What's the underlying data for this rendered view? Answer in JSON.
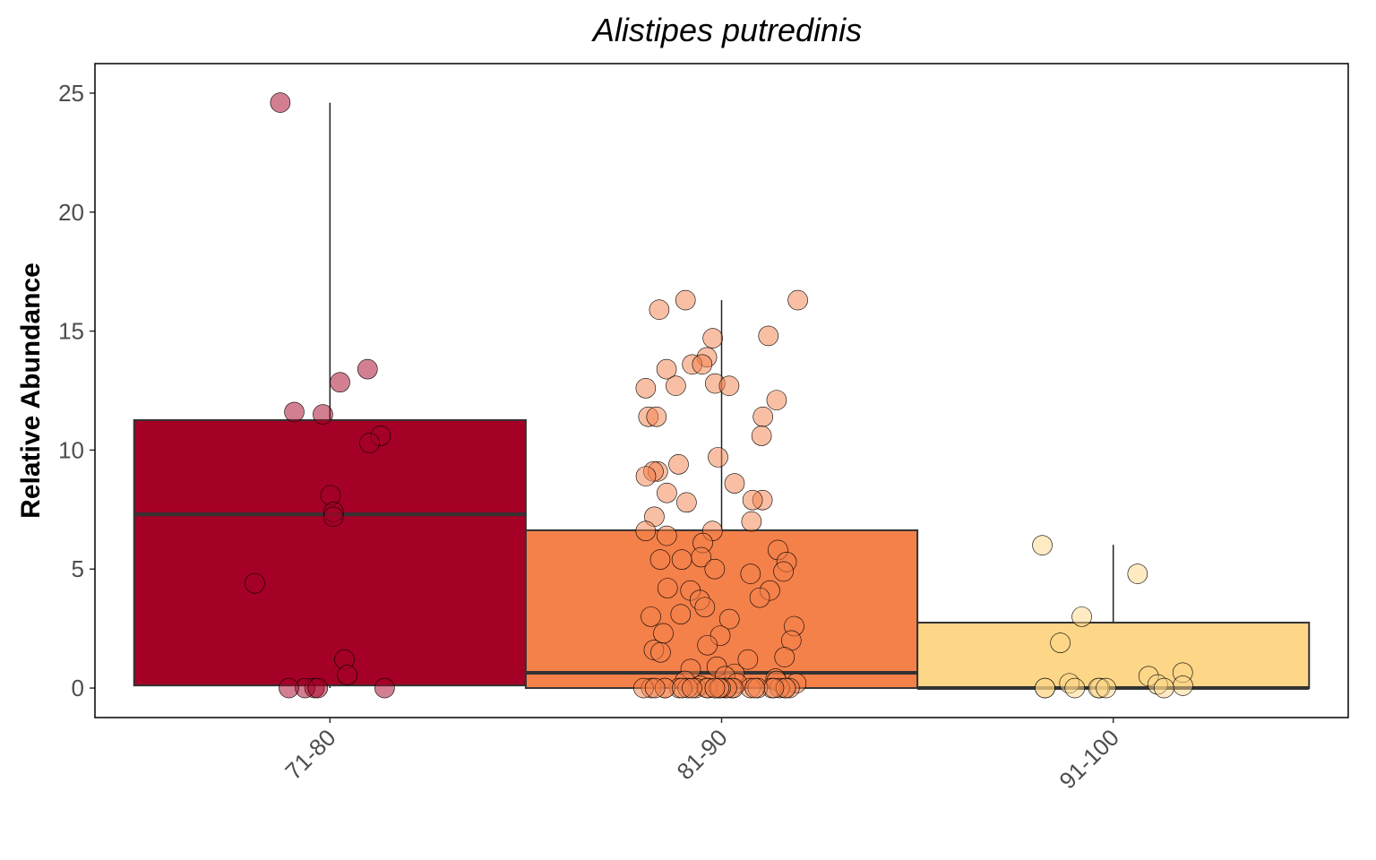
{
  "chart_data": {
    "type": "box",
    "title": "Alistipes putredinis",
    "y_label": "Relative Abundance",
    "categories": [
      "71-80",
      "81-90",
      "91-100"
    ],
    "ylim": [
      -1.24,
      26.24
    ],
    "yticks": [
      0,
      5,
      10,
      15,
      20,
      25
    ],
    "boxes": [
      {
        "color": "#a50026",
        "whisker_low": 0,
        "q1": 0.11,
        "median": 7.3,
        "q3": 11.26,
        "whisker_high": 24.6,
        "points": [
          24.6,
          13.4,
          12.85,
          11.5,
          11.6,
          10.6,
          10.3,
          8.1,
          7.4,
          7.2,
          4.4,
          1.2,
          0.55,
          0,
          0,
          0,
          0,
          0
        ]
      },
      {
        "color": "#f4804a",
        "whisker_low": 0,
        "q1": 0,
        "median": 0.64,
        "q3": 6.63,
        "whisker_high": 16.3,
        "points": [
          16.3,
          16.3,
          15.9,
          14.7,
          14.8,
          13.9,
          13.6,
          13.4,
          13.6,
          12.8,
          12.6,
          12.7,
          12.7,
          12.1,
          11.4,
          11.4,
          11.4,
          10.6,
          9.7,
          9.4,
          9.1,
          9.1,
          8.9,
          8.6,
          8.2,
          7.9,
          7.9,
          7.8,
          7.2,
          7.0,
          6.6,
          6.6,
          6.4,
          6.1,
          5.8,
          5.5,
          5.4,
          5.4,
          5.3,
          5.0,
          4.8,
          4.9,
          4.2,
          4.1,
          4.1,
          3.8,
          3.7,
          3.4,
          3.1,
          3.0,
          2.9,
          2.6,
          2.3,
          2.2,
          2.0,
          1.8,
          1.6,
          1.5,
          1.3,
          1.2,
          0.9,
          0.8,
          0.6,
          0.5,
          0.4,
          0.3,
          0.3,
          0.2,
          0.2,
          0.1,
          0,
          0,
          0,
          0,
          0,
          0,
          0,
          0,
          0,
          0,
          0,
          0,
          0,
          0,
          0,
          0,
          0,
          0,
          0,
          0,
          0,
          0,
          0,
          0,
          0,
          0,
          0,
          0,
          0,
          0
        ]
      },
      {
        "color": "#fdd688",
        "whisker_low": 0,
        "q1": 0,
        "median": 0,
        "q3": 2.75,
        "whisker_high": 6.02,
        "points": [
          6.0,
          4.8,
          3.0,
          1.9,
          0.65,
          0.5,
          0.2,
          0.15,
          0.1,
          0,
          0,
          0,
          0,
          0,
          0,
          0
        ]
      }
    ]
  }
}
